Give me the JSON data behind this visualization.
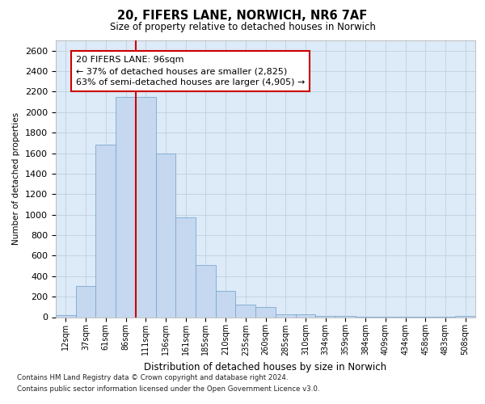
{
  "title1": "20, FIFERS LANE, NORWICH, NR6 7AF",
  "title2": "Size of property relative to detached houses in Norwich",
  "xlabel": "Distribution of detached houses by size in Norwich",
  "ylabel": "Number of detached properties",
  "categories": [
    "12sqm",
    "37sqm",
    "61sqm",
    "86sqm",
    "111sqm",
    "136sqm",
    "161sqm",
    "185sqm",
    "210sqm",
    "235sqm",
    "260sqm",
    "285sqm",
    "310sqm",
    "334sqm",
    "359sqm",
    "384sqm",
    "409sqm",
    "434sqm",
    "458sqm",
    "483sqm",
    "508sqm"
  ],
  "values": [
    20,
    300,
    1680,
    2150,
    2150,
    1600,
    975,
    510,
    255,
    120,
    100,
    30,
    25,
    10,
    10,
    5,
    3,
    3,
    2,
    2,
    15
  ],
  "bar_color": "#c5d8ef",
  "bar_edge_color": "#7aaacf",
  "vline_color": "#cc0000",
  "vline_pos": 3.5,
  "annotation_text": "20 FIFERS LANE: 96sqm\n← 37% of detached houses are smaller (2,825)\n63% of semi-detached houses are larger (4,905) →",
  "annotation_box_facecolor": "#ffffff",
  "annotation_box_edgecolor": "#cc0000",
  "ylim": [
    0,
    2700
  ],
  "ytick_interval": 200,
  "grid_color": "#c0d0e0",
  "plot_bgcolor": "#ddeaf7",
  "footer1": "Contains HM Land Registry data © Crown copyright and database right 2024.",
  "footer2": "Contains public sector information licensed under the Open Government Licence v3.0."
}
